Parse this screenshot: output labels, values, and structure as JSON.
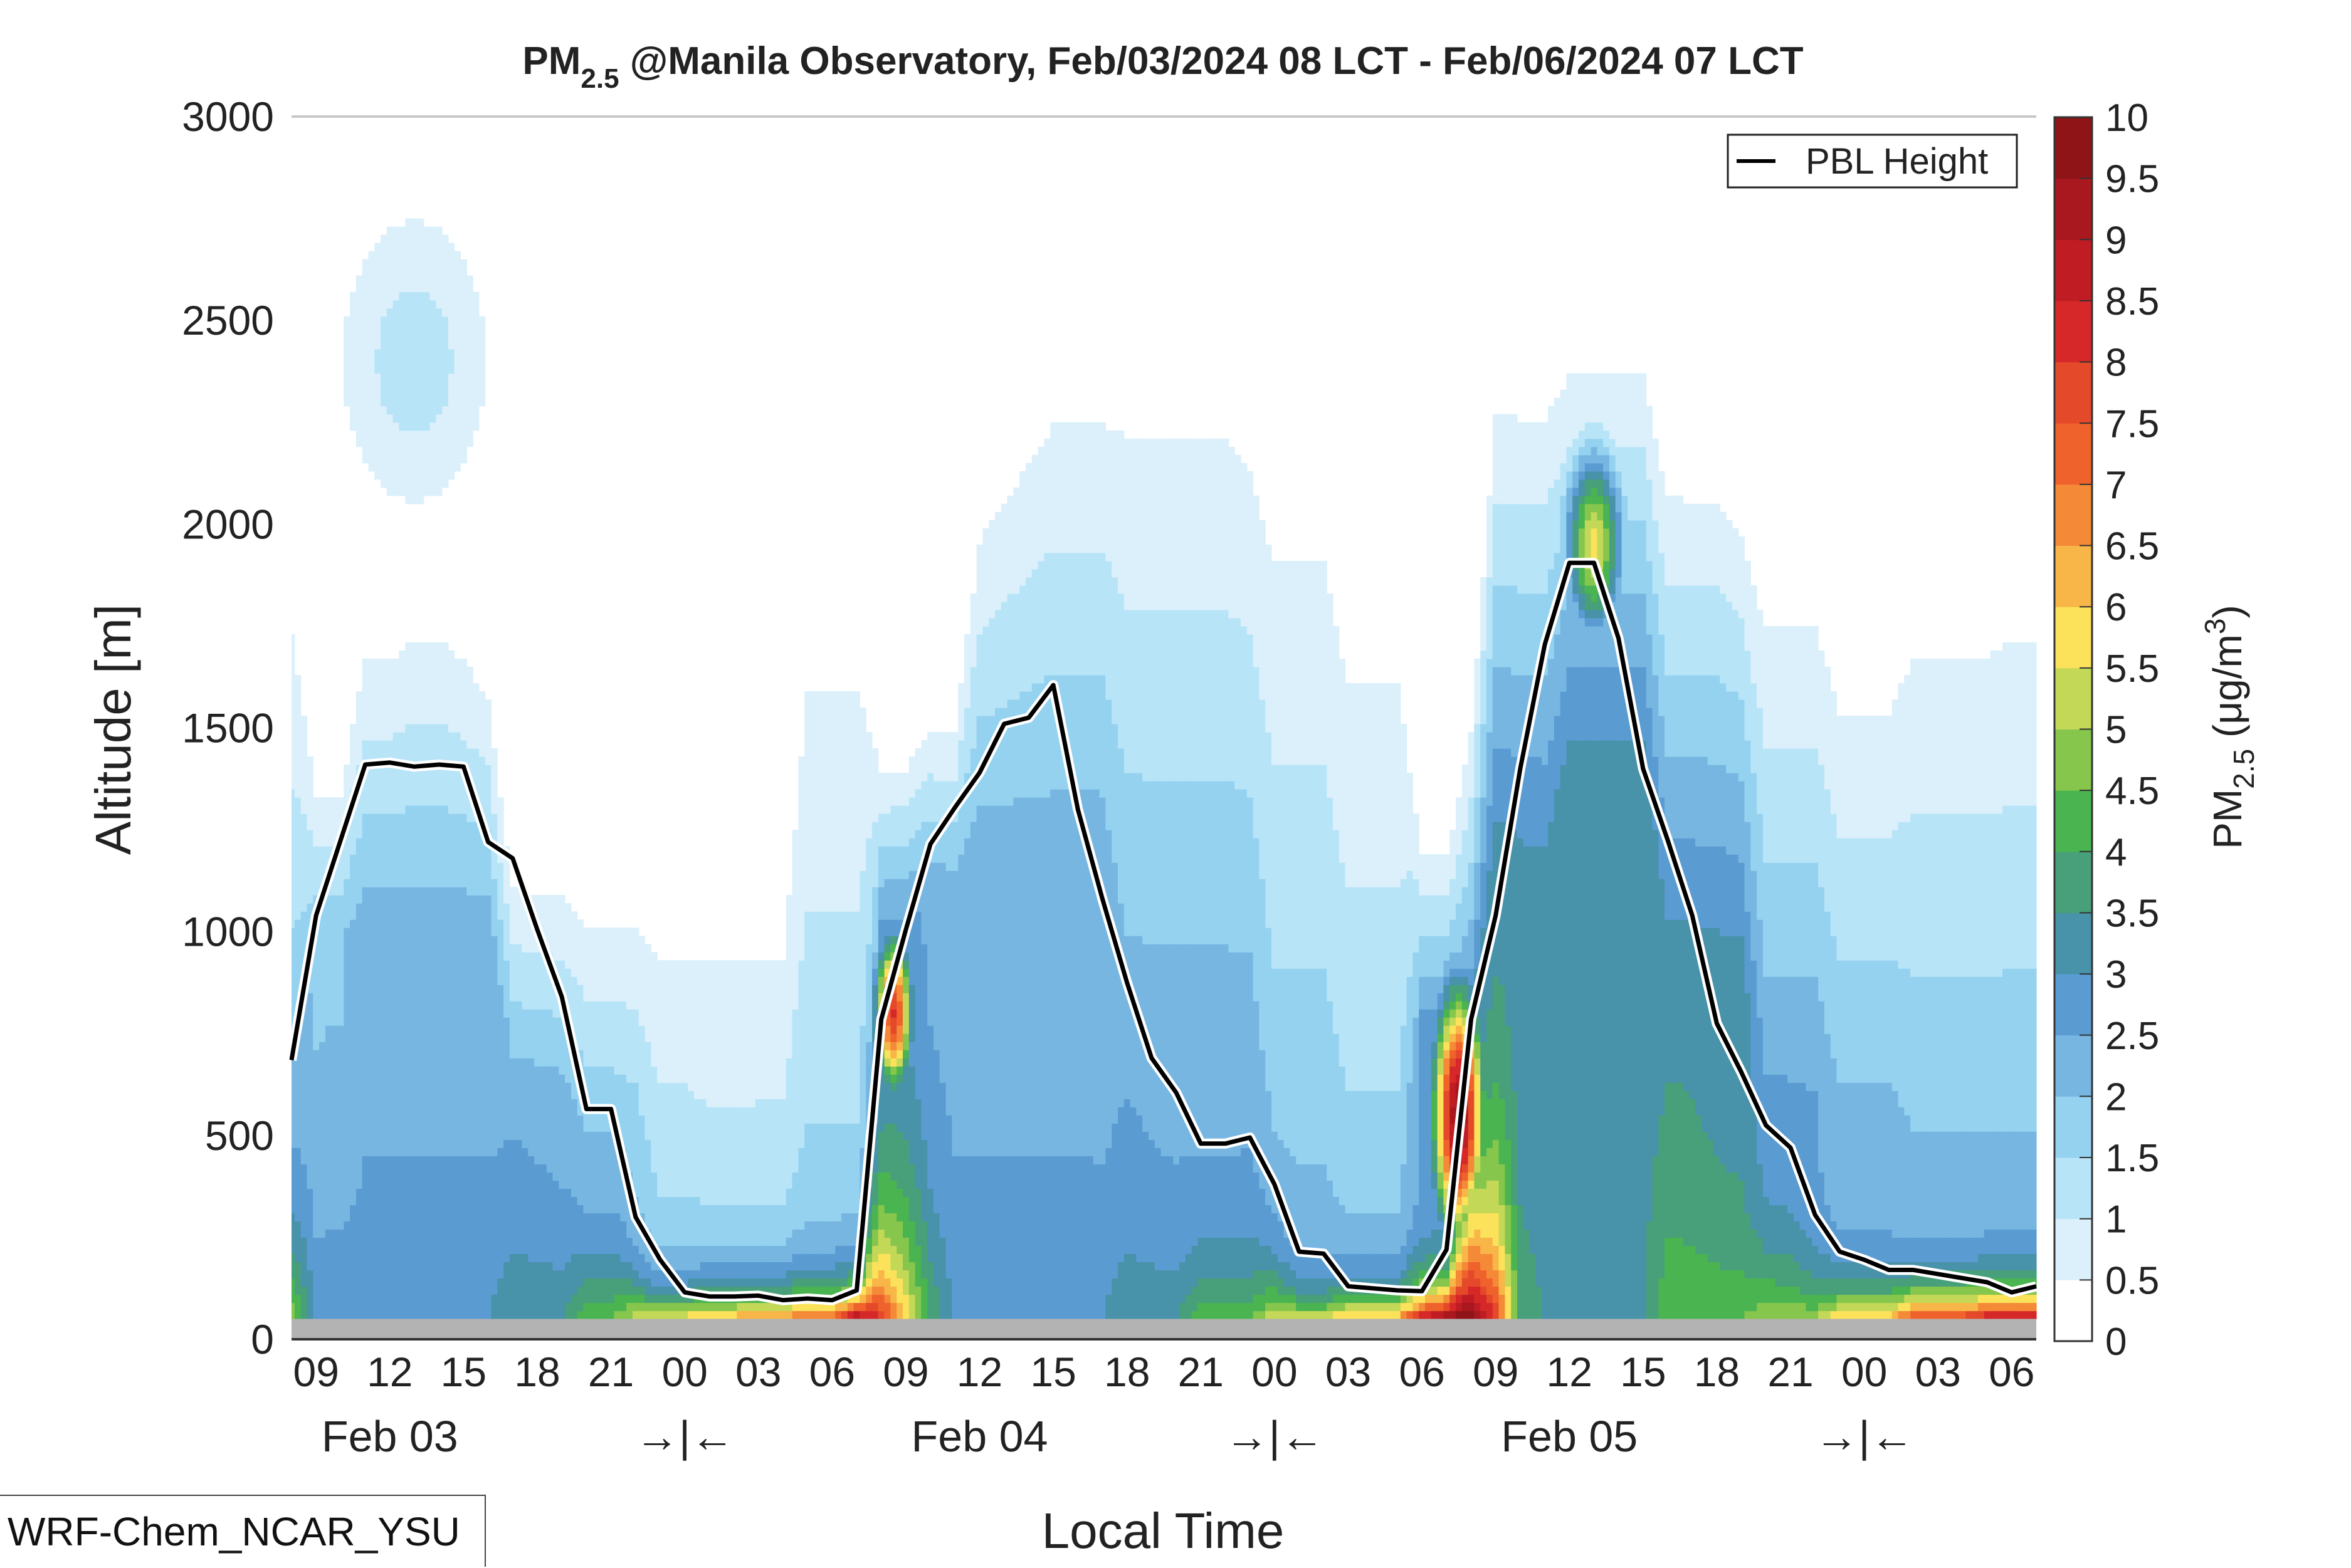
{
  "chart_data": {
    "type": "heatmap",
    "title_main": "PM",
    "title_sub": "2.5",
    "title_rest": " @Manila Observatory, Feb/03/2024 08 LCT - Feb/06/2024 07 LCT",
    "xlabel": "Local Time",
    "ylabel": "Altitude [m]",
    "ylim": [
      0,
      3000
    ],
    "yticks": [
      0,
      500,
      1000,
      1500,
      2000,
      2500,
      3000
    ],
    "ytick_labels": [
      "0",
      "500",
      "1000",
      "1500",
      "2000",
      "2500",
      "3000"
    ],
    "hours_start_label": "08 LCT Feb 03",
    "x_range_hours": [
      0,
      71
    ],
    "xticks": [
      {
        "hour": 1,
        "label": "09"
      },
      {
        "hour": 4,
        "label": "12"
      },
      {
        "hour": 7,
        "label": "15"
      },
      {
        "hour": 10,
        "label": "18"
      },
      {
        "hour": 13,
        "label": "21"
      },
      {
        "hour": 16,
        "label": "00"
      },
      {
        "hour": 19,
        "label": "03"
      },
      {
        "hour": 22,
        "label": "06"
      },
      {
        "hour": 25,
        "label": "09"
      },
      {
        "hour": 28,
        "label": "12"
      },
      {
        "hour": 31,
        "label": "15"
      },
      {
        "hour": 34,
        "label": "18"
      },
      {
        "hour": 37,
        "label": "21"
      },
      {
        "hour": 40,
        "label": "00"
      },
      {
        "hour": 43,
        "label": "03"
      },
      {
        "hour": 46,
        "label": "06"
      },
      {
        "hour": 49,
        "label": "09"
      },
      {
        "hour": 52,
        "label": "12"
      },
      {
        "hour": 55,
        "label": "15"
      },
      {
        "hour": 58,
        "label": "18"
      },
      {
        "hour": 61,
        "label": "21"
      },
      {
        "hour": 64,
        "label": "00"
      },
      {
        "hour": 67,
        "label": "03"
      },
      {
        "hour": 70,
        "label": "06"
      }
    ],
    "date_labels": [
      {
        "hour": 4,
        "label": "Feb 03"
      },
      {
        "hour": 16,
        "label": "→|←"
      },
      {
        "hour": 28,
        "label": "Feb 04"
      },
      {
        "hour": 40,
        "label": "→|←"
      },
      {
        "hour": 52,
        "label": "Feb 05"
      },
      {
        "hour": 64,
        "label": "→|←"
      }
    ],
    "ground_altitude_m": 50,
    "colorbar": {
      "label_main": "PM",
      "label_sub": "2.5",
      "label_unit": " (μg/m",
      "label_sup": "3",
      "label_close": ")",
      "levels": [
        0,
        0.5,
        1,
        1.5,
        2,
        2.5,
        3,
        3.5,
        4,
        4.5,
        5,
        5.5,
        6,
        6.5,
        7,
        7.5,
        8,
        8.5,
        9,
        9.5,
        10
      ],
      "level_labels": [
        "0",
        "0.5",
        "1",
        "1.5",
        "2",
        "2.5",
        "3",
        "3.5",
        "4",
        "4.5",
        "5",
        "5.5",
        "6",
        "6.5",
        "7",
        "7.5",
        "8",
        "8.5",
        "9",
        "9.5",
        "10"
      ],
      "colors": [
        "#ffffff",
        "#dbf0fb",
        "#b8e4f8",
        "#94d2f0",
        "#78b6e2",
        "#5a9cd2",
        "#4892aa",
        "#48a07a",
        "#4ab450",
        "#86c64c",
        "#c4d858",
        "#fbe25a",
        "#f8b648",
        "#f48a38",
        "#f0622c",
        "#e44a2a",
        "#d62828",
        "#c01c24",
        "#a8181e",
        "#8e1418"
      ]
    },
    "legend": {
      "label": "PBL Height",
      "placement": "top-right"
    },
    "pbl_height_m": [
      685,
      1040,
      1225,
      1410,
      1415,
      1405,
      1410,
      1405,
      1220,
      1180,
      1005,
      840,
      565,
      565,
      300,
      195,
      115,
      105,
      105,
      107,
      96,
      100,
      96,
      120,
      785,
      1005,
      1215,
      1305,
      1390,
      1510,
      1525,
      1605,
      1300,
      1080,
      875,
      690,
      605,
      480,
      480,
      495,
      380,
      215,
      210,
      130,
      125,
      120,
      118,
      220,
      785,
      1040,
      1400,
      1705,
      1905,
      1905,
      1720,
      1400,
      1225,
      1040,
      775,
      655,
      525,
      470,
      305,
      215,
      195,
      170,
      170,
      160,
      150,
      140,
      115,
      130
    ],
    "pm_near_surface": [
      5,
      3,
      3,
      3,
      3,
      3,
      3,
      3,
      3,
      3.5,
      3.5,
      3.5,
      4.5,
      4.5,
      5.5,
      6,
      6,
      6.5,
      6.5,
      7,
      7,
      7.5,
      7.5,
      9.5,
      8,
      6,
      4,
      3,
      3,
      3,
      3,
      3,
      3,
      3,
      3.5,
      3.5,
      3.5,
      4.5,
      4.5,
      4.5,
      5.5,
      5.5,
      5.5,
      6.5,
      6.5,
      6.5,
      9,
      10,
      10,
      8,
      4,
      3.5,
      3.5,
      3.5,
      3.5,
      3.5,
      4.5,
      4.5,
      4.5,
      4.5,
      5,
      5,
      5,
      6.5,
      6.5,
      6.5,
      8,
      8,
      8,
      9,
      9,
      9
    ],
    "pm_mixed_layer": [
      2,
      1.8,
      1.8,
      2.2,
      2.2,
      2.2,
      2.2,
      2.2,
      2.2,
      2,
      2,
      2,
      1.8,
      1.8,
      1.8,
      1.5,
      1.5,
      1.6,
      1.6,
      1.6,
      1.6,
      1.8,
      1.8,
      1.8,
      2.5,
      2.5,
      2.2,
      2.2,
      2.2,
      2.2,
      2.2,
      2.2,
      2.2,
      2.2,
      2.3,
      2.3,
      2.3,
      2.3,
      2.3,
      2.3,
      2,
      2,
      2,
      1.8,
      1.8,
      1.8,
      2.5,
      2.5,
      2.5,
      3,
      3,
      3,
      3.2,
      3.2,
      3.2,
      3.2,
      3.2,
      3.2,
      3.2,
      3.2,
      2.5,
      2.5,
      2.5,
      2.2,
      2.2,
      2.2,
      2,
      2,
      2,
      2,
      2,
      2
    ],
    "mixed_layer_top_m": [
      600,
      1000,
      1000,
      1000,
      1000,
      1000,
      1000,
      1000,
      1000,
      600,
      600,
      600,
      500,
      500,
      500,
      300,
      300,
      150,
      150,
      150,
      150,
      200,
      200,
      200,
      1000,
      1000,
      1100,
      1100,
      1200,
      1200,
      1200,
      1200,
      1200,
      1200,
      700,
      700,
      700,
      700,
      700,
      700,
      400,
      400,
      400,
      300,
      300,
      300,
      800,
      800,
      800,
      1200,
      1200,
      1200,
      1400,
      1400,
      1400,
      1400,
      900,
      900,
      900,
      900,
      600,
      600,
      600,
      500,
      500,
      500,
      500,
      500,
      500,
      500,
      500,
      500
    ],
    "pm_extent_top_m": [
      1800,
      1350,
      1350,
      1700,
      1700,
      1750,
      1750,
      1700,
      1600,
      1100,
      1100,
      1100,
      1050,
      1050,
      1050,
      1000,
      1000,
      1000,
      1000,
      1000,
      1000,
      1700,
      1700,
      1700,
      1400,
      1400,
      1500,
      1500,
      2000,
      2100,
      2200,
      2300,
      2300,
      2300,
      2300,
      2300,
      2300,
      2300,
      2300,
      2200,
      2000,
      2000,
      2000,
      1700,
      1700,
      1700,
      1200,
      1200,
      1500,
      2300,
      2300,
      2300,
      2400,
      2400,
      2400,
      2400,
      2100,
      2100,
      2100,
      2000,
      1800,
      1800,
      1800,
      1600,
      1600,
      1600,
      1750,
      1750,
      1750,
      1750,
      1800,
      1800
    ],
    "features": [
      {
        "name": "upper-layer-plume",
        "hour": 5,
        "altitude_m": 2400,
        "peak": 1.3,
        "hour_spread": 3,
        "alt_spread_m": 350
      },
      {
        "name": "feb04-morning-core",
        "hour": 24.5,
        "altitude_m": 800,
        "peak": 8,
        "hour_spread": 0.8,
        "alt_spread_m": 200
      },
      {
        "name": "feb05-morning-core",
        "hour": 47.5,
        "altitude_m": 550,
        "peak": 9.5,
        "hour_spread": 1.1,
        "alt_spread_m": 320
      },
      {
        "name": "feb05-elevated-plume",
        "hour": 53,
        "altitude_m": 1950,
        "peak": 5.6,
        "hour_spread": 1.2,
        "alt_spread_m": 230
      }
    ]
  },
  "model_label": "WRF-Chem_NCAR_YSU"
}
